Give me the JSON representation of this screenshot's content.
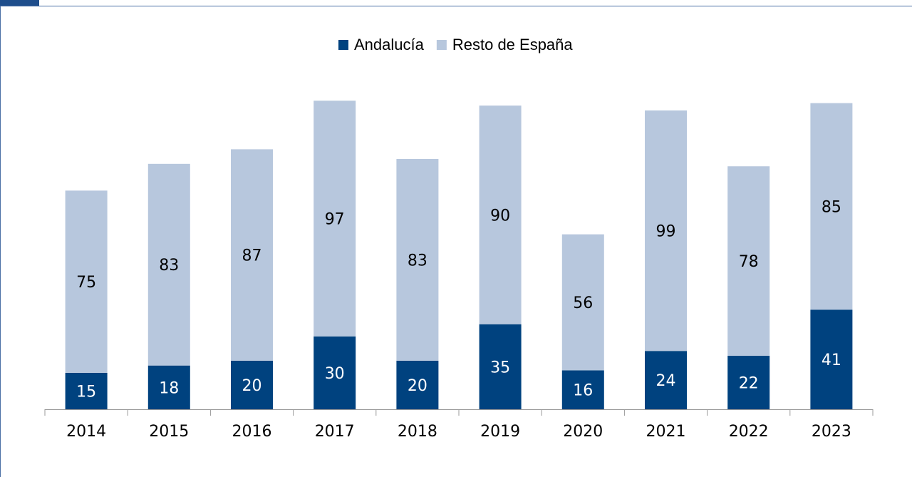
{
  "chart_data": {
    "type": "stacked_bar",
    "categories": [
      "2014",
      "2015",
      "2016",
      "2017",
      "2018",
      "2019",
      "2020",
      "2021",
      "2022",
      "2023"
    ],
    "series": [
      {
        "name": "Andalucía",
        "color": "#00427f",
        "values": [
          15,
          18,
          20,
          30,
          20,
          35,
          16,
          24,
          22,
          41
        ]
      },
      {
        "name": "Resto de España",
        "color": "#b7c7dd",
        "values": [
          75,
          83,
          87,
          97,
          83,
          90,
          56,
          99,
          78,
          85
        ]
      }
    ],
    "ylim": [
      0,
      130
    ],
    "legend": "top"
  }
}
